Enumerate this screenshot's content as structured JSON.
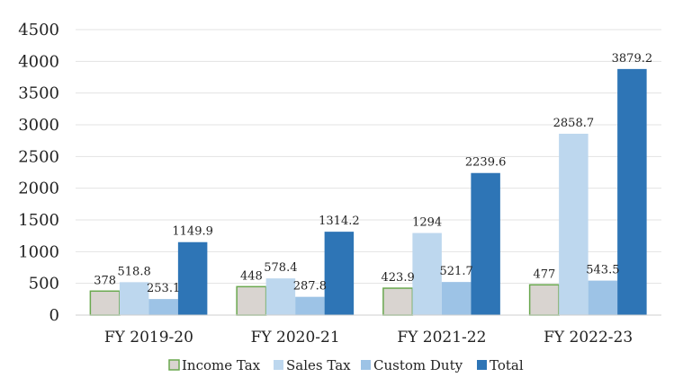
{
  "chart_data": {
    "type": "bar",
    "title": "",
    "xlabel": "",
    "ylabel": "",
    "categories": [
      "FY 2019-20",
      "FY 2020-21",
      "FY 2021-22",
      "FY 2022-23"
    ],
    "series": [
      {
        "name": "Income Tax",
        "values": [
          378,
          448,
          423.9,
          477
        ],
        "color": "#d9d4d0",
        "stroke": "#6aa84f",
        "labels": [
          "378",
          "448",
          "423.9",
          "477"
        ]
      },
      {
        "name": "Sales Tax",
        "values": [
          518.8,
          578.4,
          1294,
          2858.7
        ],
        "color": "#bdd7ee",
        "stroke": "",
        "labels": [
          "518.8",
          "578.4",
          "1294",
          "2858.7"
        ]
      },
      {
        "name": "Custom Duty",
        "values": [
          253.1,
          287.8,
          521.7,
          543.5
        ],
        "color": "#9dc3e6",
        "stroke": "",
        "labels": [
          "253.1",
          "287.8",
          "521.7",
          "543.5"
        ]
      },
      {
        "name": "Total",
        "values": [
          1149.9,
          1314.2,
          2239.6,
          3879.2
        ],
        "color": "#2e75b6",
        "stroke": "",
        "labels": [
          "1149.9",
          "1314.2",
          "2239.6",
          "3879.2"
        ]
      }
    ],
    "ylim": [
      0,
      4500
    ],
    "yticks": [
      "0",
      "500",
      "1000",
      "1500",
      "2000",
      "2500",
      "3000",
      "3500",
      "4000",
      "4500"
    ],
    "grid": true,
    "legend_position": "bottom"
  }
}
